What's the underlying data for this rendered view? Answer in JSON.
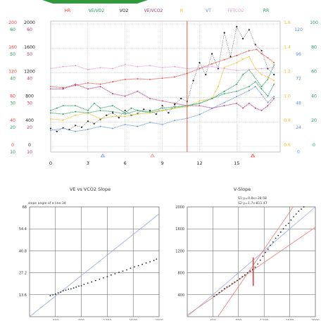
{
  "colors": {
    "hr": "#e8403a",
    "ve_vo2": "#1f9a5a",
    "vo2": "#202020",
    "ve_vco2": "#b0357f",
    "r": "#e7c21c",
    "vt": "#5d8fd3",
    "fetco2": "#e69ad6",
    "rr": "#1f9a5a",
    "grid": "#b8b8b8",
    "ref_line": "#9aaae0",
    "fit_line": "#e78a8a",
    "marker": "#e8403a",
    "top_band": "#2f9a3a"
  },
  "top_chart": {
    "legend": [
      {
        "label": "HR",
        "color": "#e8403a"
      },
      {
        "label": "VE/VO2",
        "color": "#1f9a5a"
      },
      {
        "label": "VO2",
        "color": "#202020"
      },
      {
        "label": "VE/VCO2",
        "color": "#b0357f"
      },
      {
        "label": "R",
        "color": "#e7c21c"
      },
      {
        "label": "VT",
        "color": "#5d8fd3"
      },
      {
        "label": "FETCO2",
        "color": "#e69ad6"
      },
      {
        "label": "RR",
        "color": "#1f9a5a"
      }
    ],
    "left_axis": {
      "hr": {
        "color": "#e8403a",
        "ticks": [
          "200",
          "160",
          "120",
          "80",
          "40",
          "0"
        ]
      },
      "ve_vo2": {
        "color": "#1f9a5a",
        "ticks": [
          "60",
          "50",
          "40",
          "30",
          "20",
          "10"
        ]
      },
      "vo2": {
        "color": "#202020",
        "ticks": [
          "2000",
          "1600",
          "1200",
          "800",
          "400",
          "0"
        ]
      },
      "ve_vco2": {
        "color": "#b0357f",
        "ticks": [
          "60",
          "50",
          "40",
          "30",
          "20",
          "10"
        ]
      }
    },
    "right_axis": {
      "r": {
        "color": "#e7c21c",
        "ticks": [
          "1.6",
          "1.4",
          "1.2",
          "1.0",
          "0.8",
          "0.6"
        ]
      },
      "vt": {
        "color": "#5d8fd3",
        "ticks": [
          "120",
          "96",
          "72",
          "48",
          "24",
          "0"
        ]
      },
      "rr": {
        "color": "#1f9a5a",
        "ticks": [
          "100",
          "80",
          "60",
          "40",
          "20",
          "0"
        ]
      }
    },
    "x_ticks": [
      "0",
      "3",
      "6",
      "9",
      "12",
      "15"
    ],
    "threshold_x": 11,
    "event_markers": [
      {
        "x": 4.2,
        "color": "#5d8fd3"
      },
      {
        "x": 8.2,
        "color": "#e78a8a"
      },
      {
        "x": 16.3,
        "color": "#e8403a"
      }
    ]
  },
  "chart_data": [
    {
      "type": "line",
      "x_range": [
        0,
        18.5
      ],
      "threshold_x": 11,
      "series": [
        {
          "name": "HR",
          "axis": "hr",
          "ylim": [
            0,
            200
          ],
          "x": [
            0,
            1,
            2,
            3,
            4,
            5,
            6,
            7,
            8,
            9,
            10,
            11,
            12,
            13,
            14,
            15,
            16,
            16.6,
            17,
            17.5,
            18
          ],
          "y": [
            100,
            98,
            102,
            106,
            104,
            108,
            112,
            113,
            112,
            114,
            116,
            122,
            130,
            138,
            145,
            152,
            160,
            162,
            155,
            148,
            140
          ]
        },
        {
          "name": "VE/VO2",
          "axis": "ve_vo2",
          "ylim": [
            10,
            60
          ],
          "x": [
            0,
            0.5,
            1,
            2,
            3,
            3.5,
            4,
            5,
            6,
            6.5,
            7,
            8,
            9,
            10,
            11,
            12,
            13,
            14,
            15,
            15.5,
            16,
            17,
            17.5,
            18
          ],
          "y": [
            25,
            26,
            27,
            27,
            25,
            28,
            26,
            27,
            24,
            26,
            25,
            24,
            25,
            26,
            27,
            28,
            30,
            33,
            36,
            40,
            42,
            35,
            38,
            44
          ]
        },
        {
          "name": "VO2",
          "axis": "vo2",
          "ylim": [
            0,
            2000
          ],
          "x": [
            0,
            0.5,
            1,
            1.5,
            2,
            2.5,
            3,
            3.5,
            4,
            4.5,
            5,
            5.5,
            6,
            6.5,
            7,
            7.5,
            8,
            8.5,
            9,
            9.5,
            10,
            10.5,
            11,
            11.5,
            12,
            12.5,
            13,
            13.5,
            14,
            14.5,
            15,
            15.5,
            16,
            16.5,
            17,
            17.5,
            18
          ],
          "y": [
            300,
            250,
            310,
            280,
            350,
            320,
            420,
            380,
            450,
            520,
            560,
            480,
            600,
            520,
            550,
            620,
            600,
            540,
            680,
            560,
            700,
            800,
            750,
            1100,
            1400,
            1200,
            1550,
            1300,
            1900,
            1500,
            2000,
            1800,
            1950,
            1700,
            1600,
            1300,
            1200
          ]
        },
        {
          "name": "VE/VCO2",
          "axis": "ve_vco2",
          "ylim": [
            10,
            60
          ],
          "x": [
            0,
            1,
            2,
            3,
            4,
            5,
            6,
            7,
            8,
            9,
            10,
            11,
            12,
            13,
            14,
            15,
            15.5,
            16,
            16.5,
            17,
            17.5,
            18
          ],
          "y": [
            34,
            34,
            36,
            34,
            35,
            32,
            31,
            33,
            30,
            29,
            28,
            27,
            27,
            26,
            27,
            28,
            26,
            28,
            26,
            25,
            27,
            30
          ]
        },
        {
          "name": "R",
          "axis": "r",
          "ylim": [
            0.6,
            1.6
          ],
          "x": [
            0,
            1,
            2,
            3,
            4,
            5,
            6,
            7,
            8,
            9,
            10,
            11,
            12,
            13,
            13.5,
            14,
            15,
            15.5,
            16,
            16.5,
            17,
            17.5,
            18
          ],
          "y": [
            0.83,
            0.82,
            0.86,
            0.88,
            0.83,
            0.85,
            0.85,
            0.87,
            0.88,
            0.9,
            0.92,
            0.93,
            0.98,
            1.0,
            1.1,
            1.26,
            1.3,
            1.33,
            1.35,
            1.25,
            1.2,
            1.18,
            1.15
          ]
        },
        {
          "name": "VT",
          "axis": "vt",
          "ylim": [
            0,
            120
          ],
          "x": [
            0,
            1,
            2,
            3,
            4,
            5,
            6,
            7,
            8,
            9,
            10,
            11,
            12,
            13,
            14,
            15,
            16,
            16.5,
            17,
            17.5,
            18
          ],
          "y": [
            16,
            18,
            15,
            17,
            20,
            18,
            22,
            20,
            24,
            22,
            26,
            28,
            32,
            38,
            44,
            50,
            56,
            60,
            52,
            44,
            50
          ]
        },
        {
          "name": "FETCO2",
          "axis": "vt",
          "ylim": [
            0,
            120
          ],
          "x": [
            0,
            1,
            2,
            3,
            4,
            5,
            6,
            7,
            8,
            9,
            10,
            11,
            12,
            13,
            14,
            15,
            16,
            17,
            18
          ],
          "y": [
            78,
            80,
            81,
            77,
            79,
            78,
            82,
            80,
            81,
            79,
            80,
            78,
            79,
            80,
            78,
            76,
            77,
            78,
            79
          ]
        },
        {
          "name": "RR",
          "axis": "rr",
          "ylim": [
            0,
            100
          ],
          "x": [
            0,
            1,
            2,
            3,
            4,
            5,
            6,
            7,
            8,
            9,
            10,
            11,
            12,
            13,
            14,
            15,
            16,
            16.5,
            17,
            17.5,
            18
          ],
          "y": [
            28,
            27,
            29,
            28,
            30,
            29,
            27,
            30,
            29,
            32,
            33,
            34,
            36,
            40,
            44,
            46,
            50,
            54,
            48,
            42,
            52
          ]
        }
      ]
    },
    {
      "type": "scatter",
      "title": "VE vs VCO2 Slope",
      "annotation": "slope angle of a line:34",
      "xlim": [
        0,
        2000
      ],
      "ylim": [
        0,
        68
      ],
      "x_ticks": [
        "400",
        "800",
        "1200",
        "1600",
        "2000"
      ],
      "y_ticks": [
        "68",
        "54.4",
        "40.8",
        "27.2",
        "13.6"
      ],
      "x": [
        320,
        360,
        400,
        440,
        480,
        520,
        560,
        600,
        640,
        680,
        720,
        760,
        800,
        840,
        900,
        960,
        1020,
        1080,
        1140,
        1200,
        1260,
        1320,
        1380,
        1440,
        1500,
        1560,
        1620,
        1680,
        1740,
        1800,
        1860,
        1920,
        1960
      ],
      "y": [
        13,
        13.5,
        14,
        14.8,
        15.2,
        16,
        16.4,
        17,
        17.2,
        17.8,
        18.3,
        18.9,
        19.2,
        20,
        20.8,
        21.5,
        22.4,
        23.2,
        24,
        24.8,
        25.8,
        26.6,
        27.4,
        28.2,
        29,
        30,
        30.8,
        31.6,
        32.4,
        33.2,
        34,
        34.8,
        35.6
      ]
    },
    {
      "type": "scatter",
      "title": "V-Slope",
      "annotations": [
        "S1:y=0.8x+28.58",
        "S2:y=1.7x-811.47"
      ],
      "xlim": [
        0,
        2000
      ],
      "ylim": [
        0,
        2000
      ],
      "x_ticks": [
        "400",
        "800",
        "1200",
        "1600",
        "2000"
      ],
      "y_ticks": [
        "2000",
        "1600",
        "1200",
        "800",
        "400"
      ],
      "breakpoint_x": 1030,
      "x": [
        420,
        460,
        500,
        540,
        580,
        620,
        660,
        700,
        740,
        780,
        820,
        860,
        900,
        940,
        980,
        1020,
        1060,
        1100,
        1140,
        1180,
        1220,
        1260,
        1300,
        1340,
        1380,
        1420,
        1460,
        1500,
        1540,
        1580,
        1620,
        1660,
        1700,
        1740,
        1780,
        1820
      ],
      "y": [
        370,
        400,
        440,
        470,
        510,
        540,
        560,
        600,
        630,
        660,
        690,
        730,
        760,
        800,
        830,
        860,
        900,
        960,
        1030,
        1100,
        1170,
        1230,
        1300,
        1360,
        1430,
        1480,
        1540,
        1600,
        1660,
        1700,
        1760,
        1820,
        1870,
        1920,
        1960,
        2000
      ]
    }
  ],
  "scatter_left": {
    "title": "VE vs VCO2 Slope",
    "annotation": "slope angle of a line:34",
    "x_ticks": [
      "400",
      "800",
      "1200",
      "1600",
      "2000"
    ],
    "y_ticks": [
      "68",
      "54.4",
      "40.8",
      "27.2",
      "13.6"
    ]
  },
  "scatter_right": {
    "title": "V-Slope",
    "annotation_1": "S1:y=0.8x+28.58",
    "annotation_2": "S2:y=1.7x-811.47",
    "x_ticks": [
      "400",
      "800",
      "1200",
      "1600",
      "2000"
    ],
    "y_ticks": [
      "2000",
      "1600",
      "1200",
      "800",
      "400"
    ]
  }
}
